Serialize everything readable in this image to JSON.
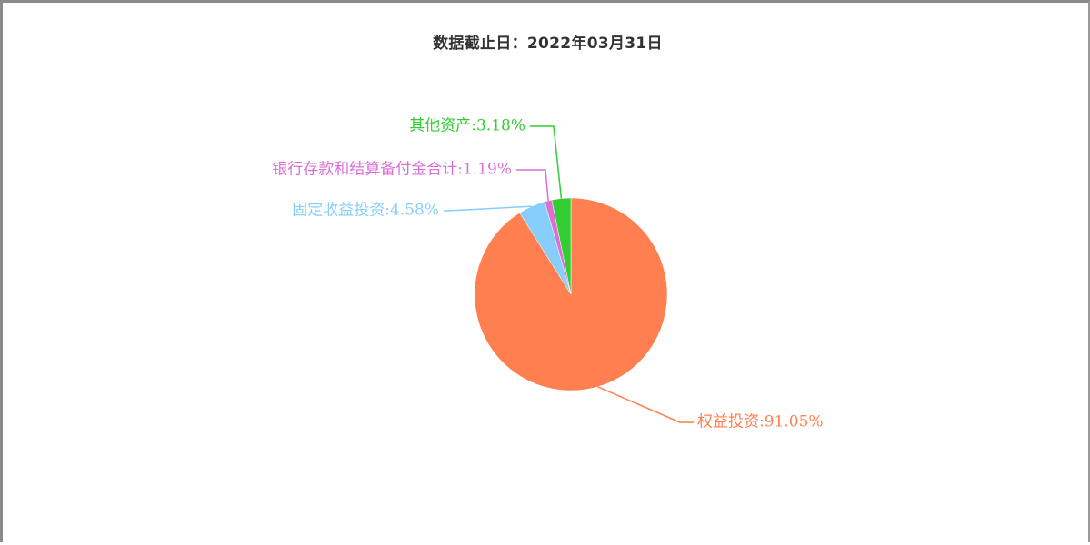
{
  "chart_data": {
    "type": "pie",
    "title": "数据截止日：2022年03月31日",
    "slices": [
      {
        "name": "权益投资",
        "value": 91.05,
        "label": "权益投资:91.05%",
        "color": "#ff7f50"
      },
      {
        "name": "固定收益投资",
        "value": 4.58,
        "label": "固定收益投资:4.58%",
        "color": "#87cefa"
      },
      {
        "name": "银行存款和结算备付金合计",
        "value": 1.19,
        "label": "银行存款和结算备付金合计:1.19%",
        "color": "#da70d6"
      },
      {
        "name": "其他资产",
        "value": 3.18,
        "label": "其他资产:3.18%",
        "color": "#32cd32"
      }
    ]
  }
}
